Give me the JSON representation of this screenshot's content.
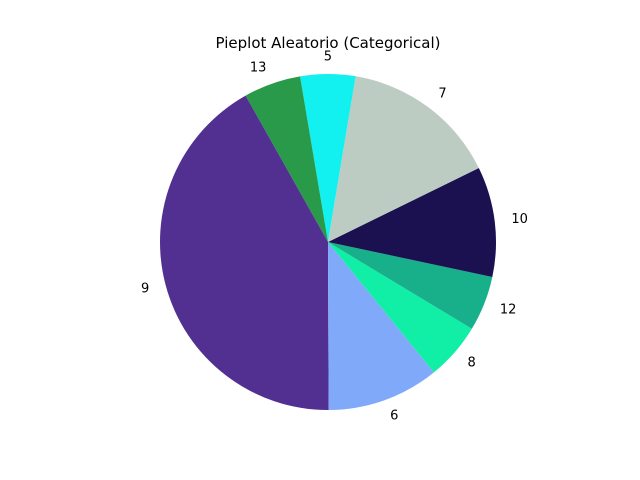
{
  "chart_data": {
    "type": "pie",
    "title": "Pieplot Aleatorio (Categorical)",
    "start_angle_deg": 80.5,
    "direction": "counterclockwise",
    "slices": [
      {
        "label": "5",
        "value": 5.3,
        "color": "#12f0f0"
      },
      {
        "label": "13",
        "value": 5.5,
        "color": "#29994a"
      },
      {
        "label": "9",
        "value": 41.9,
        "color": "#513091"
      },
      {
        "label": "6",
        "value": 10.8,
        "color": "#80a9fa"
      },
      {
        "label": "8",
        "value": 5.5,
        "color": "#11eea6"
      },
      {
        "label": "12",
        "value": 5.3,
        "color": "#17b08b"
      },
      {
        "label": "10",
        "value": 10.6,
        "color": "#1b1150"
      },
      {
        "label": "7",
        "value": 15.1,
        "color": "#bdccc3"
      }
    ]
  }
}
